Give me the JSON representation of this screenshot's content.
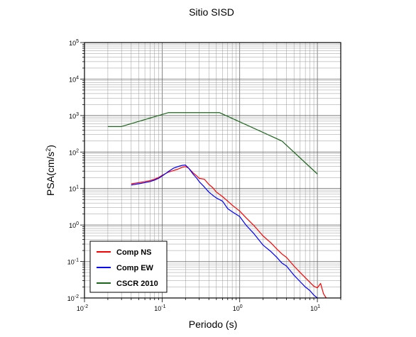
{
  "chart_data": {
    "type": "line",
    "title": "Sitio SISD",
    "xlabel": "Periodo (s)",
    "ylabel_main": "PSA(cm/s",
    "ylabel_sup": "2",
    "ylabel_end": ")",
    "x_scale": "log",
    "y_scale": "log",
    "xlim": [
      0.01,
      20
    ],
    "ylim": [
      0.01,
      100000
    ],
    "grid": true,
    "legend_position": "bottom-left",
    "x_ticks": [
      {
        "base": "10",
        "exp": "-2",
        "value": 0.01
      },
      {
        "base": "10",
        "exp": "-1",
        "value": 0.1
      },
      {
        "base": "10",
        "exp": "0",
        "value": 1
      },
      {
        "base": "10",
        "exp": "1",
        "value": 10
      }
    ],
    "y_ticks": [
      {
        "base": "10",
        "exp": "-2",
        "value": 0.01
      },
      {
        "base": "10",
        "exp": "-1",
        "value": 0.1
      },
      {
        "base": "10",
        "exp": "0",
        "value": 1
      },
      {
        "base": "10",
        "exp": "1",
        "value": 10
      },
      {
        "base": "10",
        "exp": "2",
        "value": 100
      },
      {
        "base": "10",
        "exp": "3",
        "value": 1000
      },
      {
        "base": "10",
        "exp": "4",
        "value": 10000
      },
      {
        "base": "10",
        "exp": "5",
        "value": 100000
      }
    ],
    "series": [
      {
        "name": "Comp NS",
        "color": "#ff0000",
        "x": [
          0.04,
          0.05,
          0.06,
          0.07,
          0.08,
          0.09,
          0.1,
          0.12,
          0.14,
          0.16,
          0.18,
          0.2,
          0.22,
          0.25,
          0.28,
          0.3,
          0.35,
          0.4,
          0.45,
          0.5,
          0.6,
          0.7,
          0.8,
          1.0,
          1.2,
          1.5,
          2.0,
          2.5,
          3.0,
          3.5,
          4.0,
          5.0,
          6.0,
          7.0,
          8.0,
          9.0,
          10.0,
          11.0,
          12.0,
          13.0
        ],
        "y": [
          13.5,
          14.5,
          15.5,
          16.5,
          18,
          20,
          23,
          28,
          31,
          34,
          38,
          40,
          36,
          27,
          22,
          19,
          18,
          13,
          10.5,
          8,
          6,
          4.5,
          3.5,
          2.4,
          1.6,
          1.0,
          0.5,
          0.33,
          0.22,
          0.16,
          0.13,
          0.075,
          0.05,
          0.036,
          0.027,
          0.021,
          0.019,
          0.025,
          0.013,
          0.01
        ]
      },
      {
        "name": "Comp EW",
        "color": "#0000ff",
        "x": [
          0.04,
          0.05,
          0.06,
          0.07,
          0.08,
          0.09,
          0.1,
          0.12,
          0.14,
          0.16,
          0.18,
          0.2,
          0.22,
          0.25,
          0.28,
          0.3,
          0.35,
          0.4,
          0.45,
          0.5,
          0.6,
          0.7,
          0.8,
          1.0,
          1.2,
          1.5,
          2.0,
          2.5,
          3.0,
          3.5,
          4.0,
          5.0,
          6.0,
          7.0,
          8.0,
          9.0,
          10.0
        ],
        "y": [
          12.5,
          13.5,
          14.5,
          15.5,
          17,
          19,
          22,
          29,
          36,
          40,
          43,
          44,
          36,
          25,
          19,
          15.5,
          11,
          8,
          6.5,
          5.5,
          4.5,
          2.8,
          2.3,
          1.7,
          1.0,
          0.6,
          0.28,
          0.19,
          0.13,
          0.09,
          0.075,
          0.042,
          0.028,
          0.02,
          0.016,
          0.012,
          0.01
        ]
      },
      {
        "name": "CSCR 2010",
        "color": "#1a661a",
        "x": [
          0.02,
          0.03,
          0.12,
          0.55,
          3.5,
          10.0
        ],
        "y": [
          500,
          500,
          1200,
          1200,
          200,
          25
        ]
      }
    ]
  }
}
